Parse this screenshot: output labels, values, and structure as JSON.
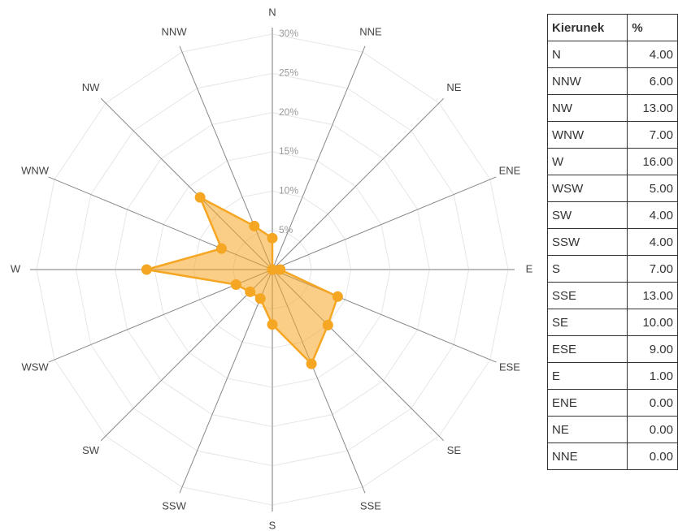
{
  "chart_data": {
    "type": "radar",
    "categories": [
      "N",
      "NNE",
      "NE",
      "ENE",
      "E",
      "ESE",
      "SE",
      "SSE",
      "S",
      "SSW",
      "SW",
      "WSW",
      "W",
      "WNW",
      "NW",
      "NNW"
    ],
    "values": [
      4,
      0,
      0,
      0,
      1,
      9,
      10,
      13,
      7,
      4,
      4,
      5,
      16,
      7,
      13,
      6
    ],
    "color": "#f5a623",
    "ylim": [
      0,
      30
    ],
    "yticks": [
      {
        "value": 5,
        "label": "5%"
      },
      {
        "value": 10,
        "label": "10%"
      },
      {
        "value": 15,
        "label": "15%"
      },
      {
        "value": 20,
        "label": "20%"
      },
      {
        "value": 25,
        "label": "25%"
      },
      {
        "value": 30,
        "label": "30%"
      }
    ],
    "grid": true
  },
  "table": {
    "header": [
      "Kierunek",
      "%"
    ],
    "rows": [
      [
        "N",
        "4.00"
      ],
      [
        "NNW",
        "6.00"
      ],
      [
        "NW",
        "13.00"
      ],
      [
        "WNW",
        "7.00"
      ],
      [
        "W",
        "16.00"
      ],
      [
        "WSW",
        "5.00"
      ],
      [
        "SW",
        "4.00"
      ],
      [
        "SSW",
        "4.00"
      ],
      [
        "S",
        "7.00"
      ],
      [
        "SSE",
        "13.00"
      ],
      [
        "SE",
        "10.00"
      ],
      [
        "ESE",
        "9.00"
      ],
      [
        "E",
        "1.00"
      ],
      [
        "ENE",
        "0.00"
      ],
      [
        "NE",
        "0.00"
      ],
      [
        "NNE",
        "0.00"
      ]
    ]
  }
}
